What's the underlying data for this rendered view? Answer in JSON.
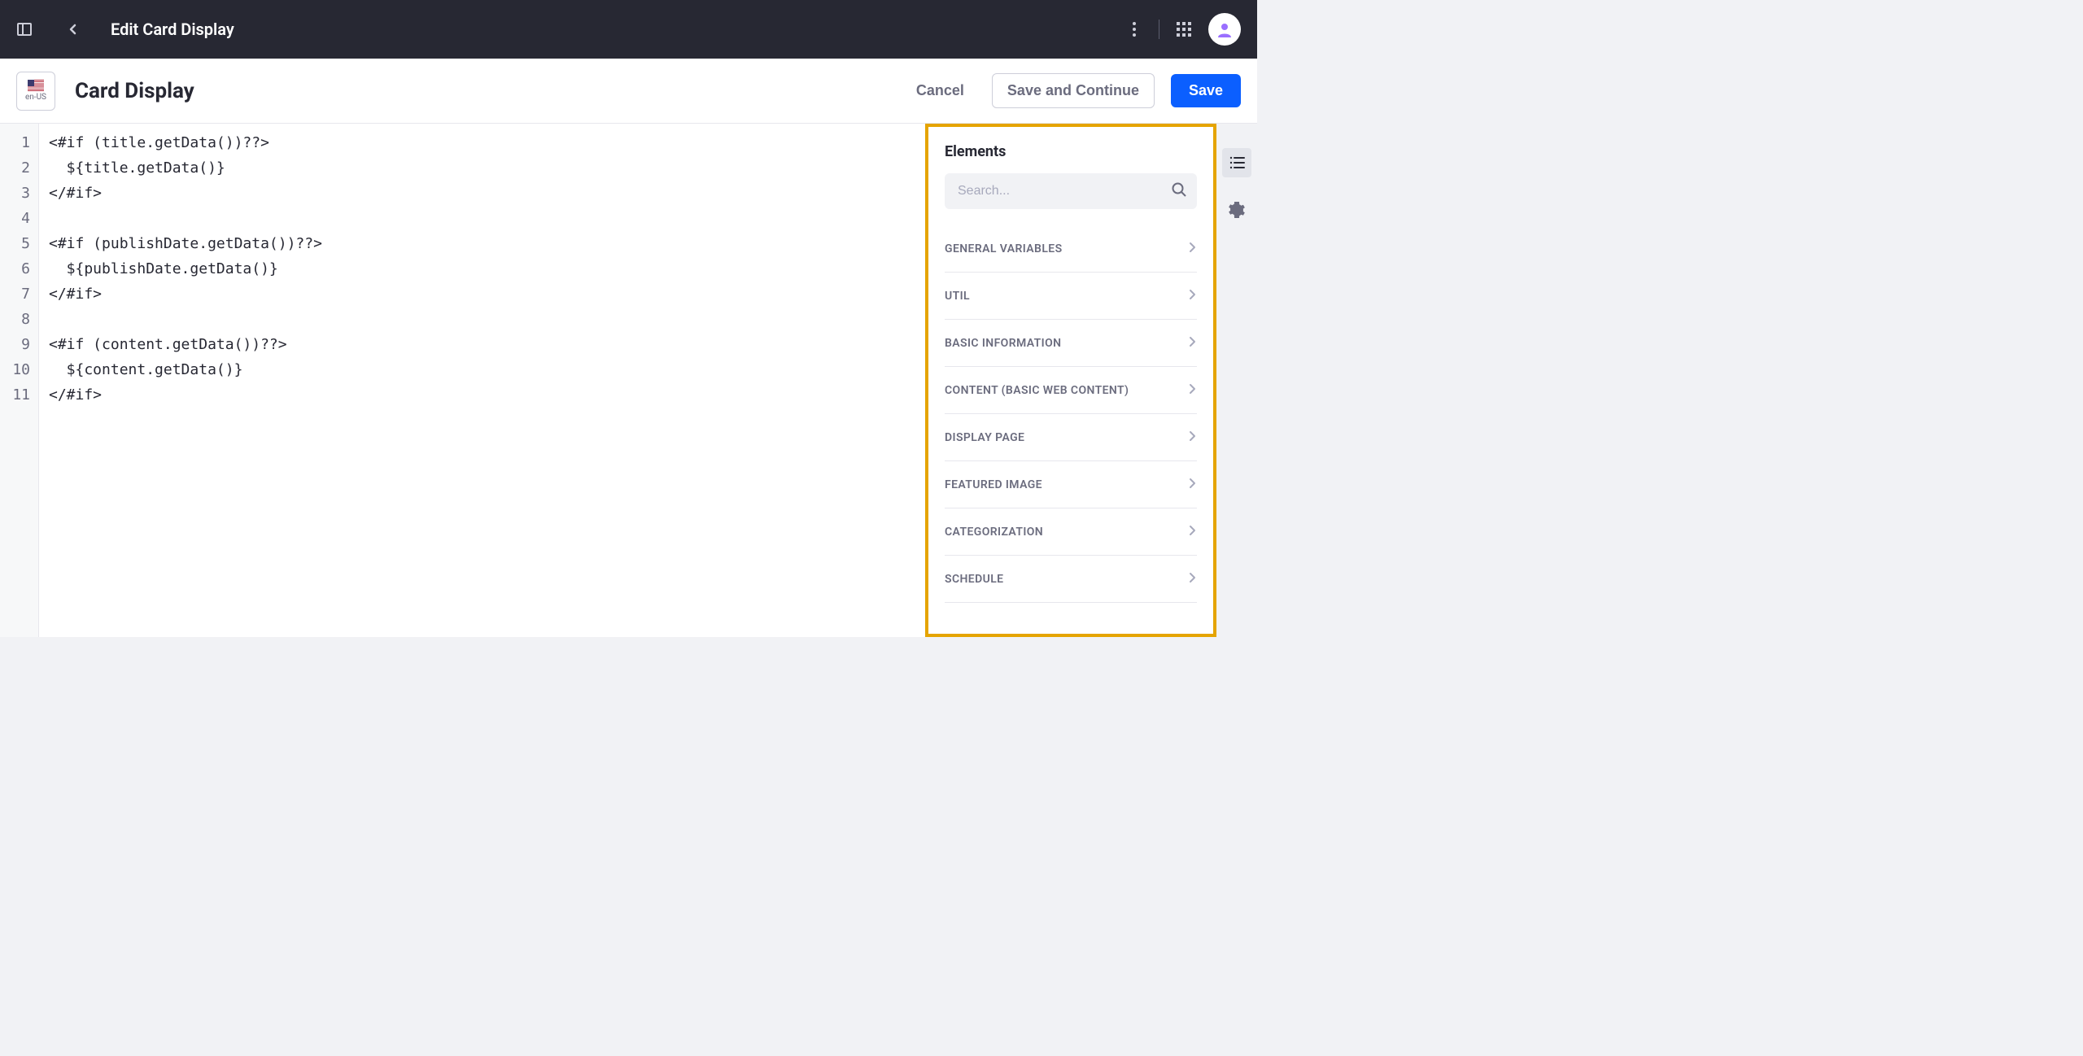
{
  "header": {
    "title": "Edit Card Display"
  },
  "subheader": {
    "locale": "en-US",
    "page_title": "Card Display",
    "cancel_label": "Cancel",
    "save_continue_label": "Save and Continue",
    "save_label": "Save"
  },
  "editor": {
    "line_count": 11,
    "lines": [
      "<#if (title.getData())??>",
      "  ${title.getData()}",
      "</#if>",
      "",
      "<#if (publishDate.getData())??>",
      "  ${publishDate.getData()}",
      "</#if>",
      "",
      "<#if (content.getData())??>",
      "  ${content.getData()}",
      "</#if>"
    ]
  },
  "elements_panel": {
    "title": "Elements",
    "search_placeholder": "Search...",
    "highlight_color": "#e5a400",
    "categories": [
      "GENERAL VARIABLES",
      "UTIL",
      "BASIC INFORMATION",
      "CONTENT (BASIC WEB CONTENT)",
      "DISPLAY PAGE",
      "FEATURED IMAGE",
      "CATEGORIZATION",
      "SCHEDULE"
    ]
  },
  "colors": {
    "primary": "#0b5fff",
    "dark_header": "#272833",
    "text_secondary": "#6b6c7e",
    "border": "#e7e7ed",
    "input_bg": "#f1f2f5"
  }
}
